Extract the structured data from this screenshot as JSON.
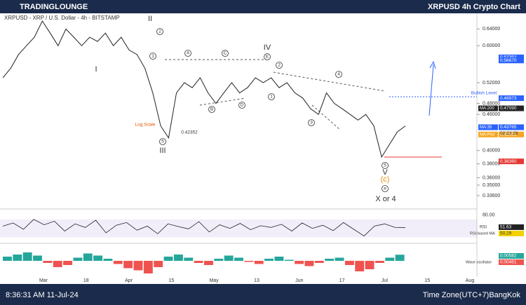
{
  "header": {
    "brand": "TRADINGLOUNGE",
    "title": "XRPUSD 4h Crypto Chart"
  },
  "footer": {
    "time": "8:36:31 AM 11-Jul-24",
    "timezone": "Time Zone(UTC+7)BangKok"
  },
  "chart_data": {
    "type": "line",
    "symbol": "XRPUSD - XRP / U.S. Dollar - 4h - BITSTAMP",
    "log_scale": true,
    "ylim": [
      0.32,
      0.68
    ],
    "yticks": [
      {
        "value": 0.64,
        "label": "0.64000"
      },
      {
        "value": 0.6,
        "label": "0.60000"
      },
      {
        "value": 0.52,
        "label": "0.52000"
      },
      {
        "value": 0.48,
        "label": "0.48000"
      },
      {
        "value": 0.46,
        "label": "0.46000"
      },
      {
        "value": 0.4,
        "label": "0.40000"
      },
      {
        "value": 0.38,
        "label": "0.38000"
      },
      {
        "value": 0.36,
        "label": "0.36000"
      },
      {
        "value": 0.35,
        "label": "0.35000"
      },
      {
        "value": 0.336,
        "label": "0.33600"
      }
    ],
    "xticks": [
      "Mar",
      "18",
      "Apr",
      "15",
      "May",
      "13",
      "Jun",
      "17",
      "Jul",
      "15",
      "Aug"
    ],
    "series": [
      {
        "name": "XRPUSD",
        "color": "#222222",
        "values": [
          0.53,
          0.55,
          0.58,
          0.6,
          0.62,
          0.66,
          0.63,
          0.6,
          0.64,
          0.62,
          0.6,
          0.62,
          0.61,
          0.63,
          0.6,
          0.62,
          0.59,
          0.58,
          0.55,
          0.5,
          0.44,
          0.42,
          0.5,
          0.52,
          0.51,
          0.53,
          0.5,
          0.48,
          0.5,
          0.52,
          0.5,
          0.51,
          0.53,
          0.52,
          0.53,
          0.51,
          0.52,
          0.5,
          0.49,
          0.47,
          0.46,
          0.5,
          0.48,
          0.47,
          0.46,
          0.45,
          0.46,
          0.44,
          0.39,
          0.41,
          0.43,
          0.44
        ]
      }
    ],
    "price_labels": [
      {
        "value": 0.57352,
        "label": "0.57352",
        "color": "#2962ff"
      },
      {
        "value": 0.5667,
        "label": "0.56670",
        "color": "#2962ff"
      },
      {
        "value": 0.48973,
        "label": "0.48973",
        "color": "#2962ff"
      },
      {
        "value": 0.4709,
        "name": "MA:200",
        "label": "0.47090",
        "color": "#222222"
      },
      {
        "value": 0.43775,
        "name": "XRPUSD",
        "label": "0.43775",
        "color": "#111111"
      },
      {
        "value": 0.43765,
        "name": "MA:35",
        "label": "0.43765",
        "color": "#2962ff"
      },
      {
        "value": 0.42561,
        "name": "MA:Plot",
        "label": "0.42561",
        "color": "#f5a623"
      },
      {
        "value": 0.3836,
        "label": "0.38360",
        "color": "#e53935"
      }
    ],
    "countdown": "02:23:29",
    "annotations": [
      {
        "text": "II"
      },
      {
        "text": "I"
      },
      {
        "text": "III"
      },
      {
        "text": "IV"
      },
      {
        "text": "V"
      },
      {
        "text": "(c)"
      },
      {
        "text": "e",
        "circled": true
      },
      {
        "text": "X or 4"
      },
      {
        "text": "2",
        "circled": true
      },
      {
        "text": "1",
        "circled": true
      },
      {
        "text": "5",
        "circled": true
      },
      {
        "text": "A",
        "circled": true
      },
      {
        "text": "B",
        "circled": true
      },
      {
        "text": "C",
        "circled": true
      },
      {
        "text": "D",
        "circled": true
      },
      {
        "text": "E",
        "circled": true
      },
      {
        "text": "1",
        "circled": true
      },
      {
        "text": "2",
        "circled": true
      },
      {
        "text": "3",
        "circled": true
      },
      {
        "text": "4",
        "circled": true
      },
      {
        "text": "5",
        "circled": true
      },
      {
        "text": "Log Scale"
      },
      {
        "text": "0.42352"
      },
      {
        "text": "Bullish Level"
      }
    ]
  },
  "rsi": {
    "ylim": [
      20,
      90
    ],
    "yticks": [
      {
        "value": 80,
        "label": "80.00"
      }
    ],
    "label": "RSI",
    "value_label": "51.63",
    "ma_label": "RSI-based MA",
    "ma_value_label": "50.29",
    "values": [
      55,
      62,
      48,
      70,
      58,
      66,
      44,
      60,
      52,
      68,
      40,
      57,
      63,
      46,
      55,
      38,
      60,
      54,
      49,
      65,
      42,
      58,
      50,
      61,
      47,
      56,
      52,
      59,
      44,
      62,
      50,
      57,
      45,
      63,
      48,
      33,
      55,
      60,
      52,
      51.63
    ]
  },
  "oscillator": {
    "label": "Wave oscillator",
    "value_label": "0.00582",
    "value2_label": "0.00461",
    "values": [
      0.004,
      0.006,
      0.008,
      0.005,
      -0.002,
      -0.006,
      -0.004,
      0.003,
      0.007,
      0.005,
      0.002,
      -0.003,
      -0.007,
      -0.009,
      -0.012,
      -0.006,
      0.004,
      0.006,
      0.003,
      -0.002,
      -0.004,
      0.002,
      0.005,
      0.003,
      -0.001,
      -0.003,
      0.002,
      0.004,
      0.001,
      -0.003,
      -0.005,
      -0.002,
      0.002,
      0.003,
      -0.004,
      -0.01,
      -0.008,
      -0.002,
      0.003,
      0.00582
    ]
  }
}
